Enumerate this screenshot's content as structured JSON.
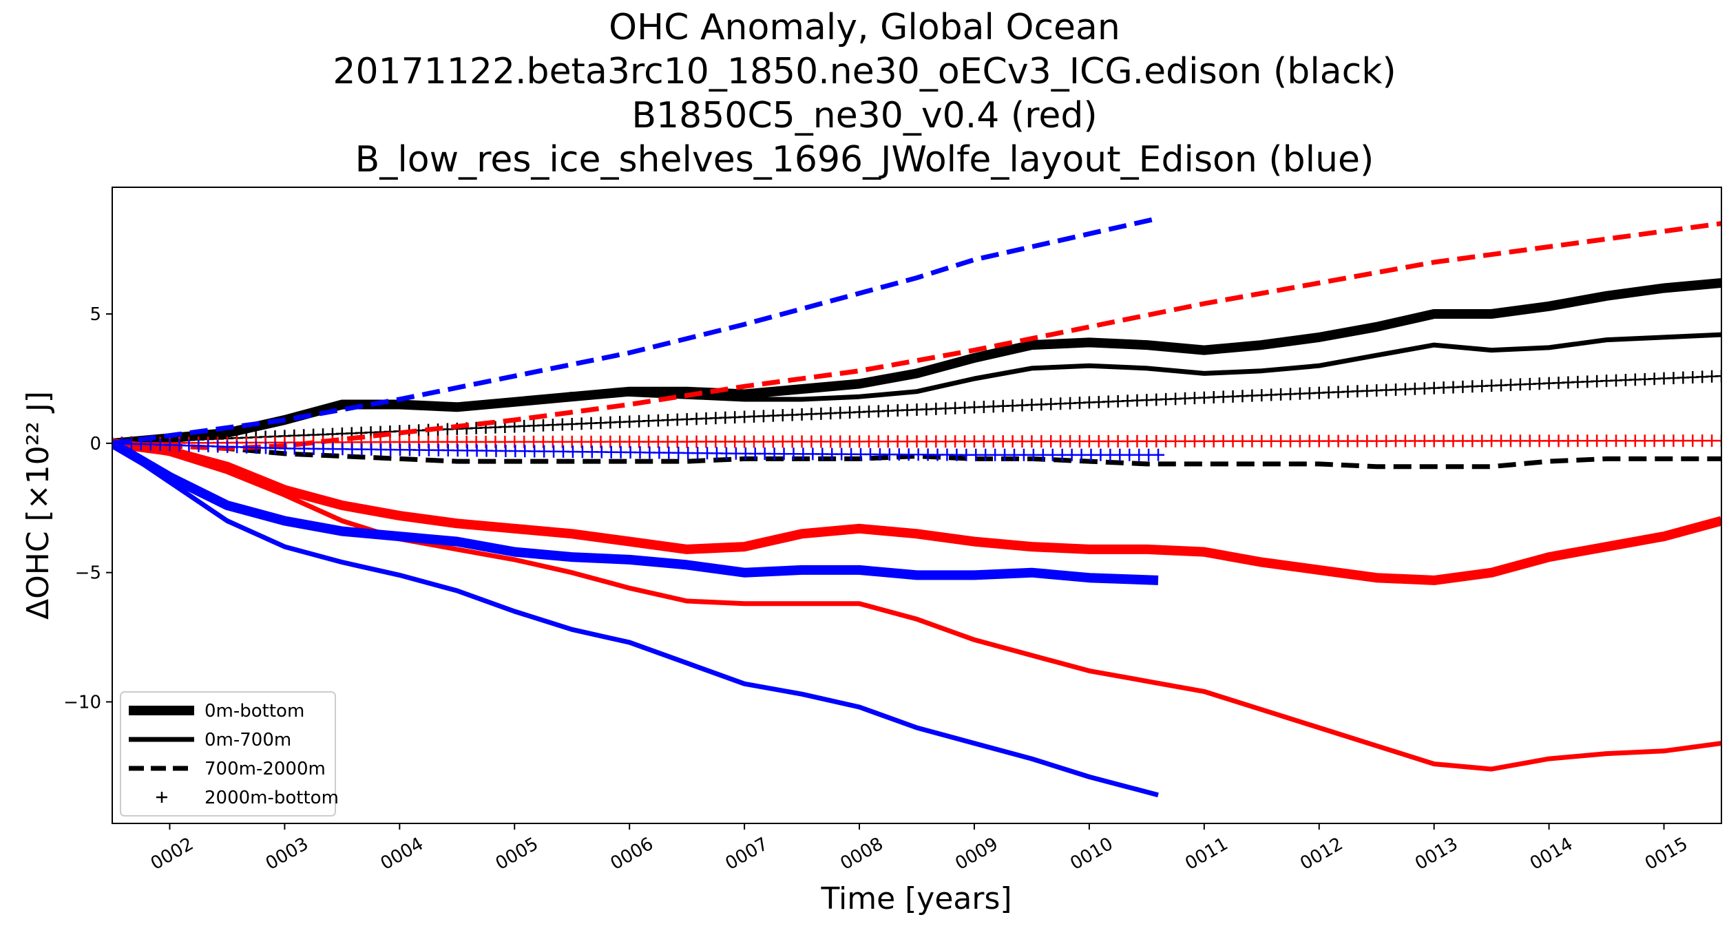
{
  "chart_data": {
    "type": "line",
    "title_lines": [
      "OHC Anomaly, Global Ocean",
      "20171122.beta3rc10_1850.ne30_oECv3_ICG.edison (black)",
      "B1850C5_ne30_v0.4 (red)",
      "B_low_res_ice_shelves_1696_JWolfe_layout_Edison (blue)"
    ],
    "xlabel": "Time [years]",
    "ylabel": "ΔOHC [×10²² J]",
    "xlim": [
      1.5,
      15.5
    ],
    "ylim": [
      -14.7,
      9.9
    ],
    "x_ticks": [
      2,
      3,
      4,
      5,
      6,
      7,
      8,
      9,
      10,
      11,
      12,
      13,
      14,
      15
    ],
    "x_tick_labels": [
      "0002",
      "0003",
      "0004",
      "0005",
      "0006",
      "0007",
      "0008",
      "0009",
      "0010",
      "0011",
      "0012",
      "0013",
      "0014",
      "0015"
    ],
    "y_ticks": [
      -10,
      -5,
      0,
      5
    ],
    "y_tick_labels": [
      "−10",
      "−5",
      "0",
      "5"
    ],
    "legend": {
      "position": "lower-left",
      "entries": [
        {
          "label": "0m-bottom",
          "style": "thick"
        },
        {
          "label": "0m-700m",
          "style": "solid"
        },
        {
          "label": "700m-2000m",
          "style": "dashed"
        },
        {
          "label": "2000m-bottom",
          "style": "plus"
        }
      ]
    },
    "colors": {
      "black": "#000000",
      "red": "#ff0000",
      "blue": "#0000ff"
    },
    "series": [
      {
        "color": "black",
        "style": "thick",
        "x": [
          1.5,
          2.5,
          3.0,
          3.5,
          4.0,
          4.5,
          5.0,
          5.5,
          6.0,
          6.5,
          7.0,
          7.5,
          8.0,
          8.5,
          9.0,
          9.5,
          10.0,
          10.5,
          11.0,
          11.5,
          12.0,
          12.5,
          13.0,
          13.5,
          14.0,
          14.5,
          15.0,
          15.5
        ],
        "y": [
          0,
          0.4,
          0.9,
          1.5,
          1.5,
          1.4,
          1.6,
          1.8,
          2.0,
          2.0,
          1.9,
          2.1,
          2.3,
          2.7,
          3.3,
          3.8,
          3.9,
          3.8,
          3.6,
          3.8,
          4.1,
          4.5,
          5.0,
          5.0,
          5.3,
          5.7,
          6.0,
          6.2
        ]
      },
      {
        "color": "black",
        "style": "solid",
        "x": [
          1.5,
          2.5,
          3.0,
          3.5,
          4.0,
          4.5,
          5.0,
          5.5,
          6.0,
          6.5,
          7.0,
          7.5,
          8.0,
          8.5,
          9.0,
          9.5,
          10.0,
          10.5,
          11.0,
          11.5,
          12.0,
          12.5,
          13.0,
          13.5,
          14.0,
          14.5,
          15.0,
          15.5
        ],
        "y": [
          0,
          0.4,
          0.9,
          1.4,
          1.5,
          1.4,
          1.6,
          1.9,
          1.9,
          1.8,
          1.7,
          1.7,
          1.8,
          2.0,
          2.5,
          2.9,
          3.0,
          2.9,
          2.7,
          2.8,
          3.0,
          3.4,
          3.8,
          3.6,
          3.7,
          4.0,
          4.1,
          4.2
        ]
      },
      {
        "color": "black",
        "style": "dashed",
        "x": [
          1.5,
          2.5,
          3.0,
          3.5,
          4.0,
          4.5,
          5.0,
          5.5,
          6.0,
          6.5,
          7.0,
          7.5,
          8.0,
          8.5,
          9.0,
          9.5,
          10.0,
          10.5,
          11.0,
          11.5,
          12.0,
          12.5,
          13.0,
          13.5,
          14.0,
          14.5,
          15.0,
          15.5
        ],
        "y": [
          0,
          -0.2,
          -0.4,
          -0.5,
          -0.6,
          -0.7,
          -0.7,
          -0.7,
          -0.7,
          -0.7,
          -0.6,
          -0.6,
          -0.6,
          -0.5,
          -0.6,
          -0.6,
          -0.7,
          -0.8,
          -0.8,
          -0.8,
          -0.8,
          -0.9,
          -0.9,
          -0.9,
          -0.7,
          -0.6,
          -0.6,
          -0.6
        ]
      },
      {
        "color": "black",
        "style": "plus",
        "x": [
          1.5,
          15.5
        ],
        "y": [
          0,
          2.6
        ]
      },
      {
        "color": "red",
        "style": "thick",
        "x": [
          1.5,
          2.0,
          2.5,
          3.0,
          3.5,
          4.0,
          4.5,
          5.0,
          5.5,
          6.0,
          6.5,
          7.0,
          7.5,
          8.0,
          8.5,
          9.0,
          9.5,
          10.0,
          10.5,
          11.0,
          11.5,
          12.0,
          12.5,
          13.0,
          13.5,
          14.0,
          14.5,
          15.0,
          15.5
        ],
        "y": [
          0,
          -0.3,
          -0.9,
          -1.8,
          -2.4,
          -2.8,
          -3.1,
          -3.3,
          -3.5,
          -3.8,
          -4.1,
          -4.0,
          -3.5,
          -3.3,
          -3.5,
          -3.8,
          -4.0,
          -4.1,
          -4.1,
          -4.2,
          -4.6,
          -4.9,
          -5.2,
          -5.3,
          -5.0,
          -4.4,
          -4.0,
          -3.6,
          -3.0
        ]
      },
      {
        "color": "red",
        "style": "solid",
        "x": [
          1.5,
          2.0,
          2.5,
          3.0,
          3.5,
          4.0,
          4.5,
          5.0,
          5.5,
          6.0,
          6.5,
          7.0,
          7.5,
          8.0,
          8.5,
          9.0,
          9.5,
          10.0,
          10.5,
          11.0,
          11.5,
          12.0,
          12.5,
          13.0,
          13.5,
          14.0,
          14.5,
          15.0,
          15.5
        ],
        "y": [
          0,
          -0.4,
          -1.1,
          -2.0,
          -3.0,
          -3.7,
          -4.1,
          -4.5,
          -5.0,
          -5.6,
          -6.1,
          -6.2,
          -6.2,
          -6.2,
          -6.8,
          -7.6,
          -8.2,
          -8.8,
          -9.2,
          -9.6,
          -10.3,
          -11.0,
          -11.7,
          -12.4,
          -12.6,
          -12.2,
          -12.0,
          -11.9,
          -11.6
        ]
      },
      {
        "color": "red",
        "style": "dashed",
        "x": [
          1.5,
          2.5,
          3.0,
          4.0,
          5.0,
          6.0,
          7.0,
          8.0,
          9.0,
          10.0,
          11.0,
          12.0,
          13.0,
          14.0,
          15.0,
          15.5
        ],
        "y": [
          0,
          -0.2,
          -0.1,
          0.4,
          0.9,
          1.5,
          2.2,
          2.8,
          3.6,
          4.5,
          5.4,
          6.2,
          7.0,
          7.6,
          8.2,
          8.5
        ]
      },
      {
        "color": "red",
        "style": "plus",
        "x": [
          1.5,
          4.0,
          15.5
        ],
        "y": [
          0,
          0.05,
          0.1
        ]
      },
      {
        "color": "blue",
        "style": "thick",
        "x": [
          1.5,
          2.0,
          2.5,
          3.0,
          3.5,
          4.0,
          4.5,
          5.0,
          5.5,
          6.0,
          6.5,
          7.0,
          7.5,
          8.0,
          8.5,
          9.0,
          9.5,
          10.0,
          10.6
        ],
        "y": [
          0,
          -1.3,
          -2.4,
          -3.0,
          -3.4,
          -3.6,
          -3.8,
          -4.2,
          -4.4,
          -4.5,
          -4.7,
          -5.0,
          -4.9,
          -4.9,
          -5.1,
          -5.1,
          -5.0,
          -5.2,
          -5.3
        ]
      },
      {
        "color": "blue",
        "style": "solid",
        "x": [
          1.5,
          2.0,
          2.5,
          3.0,
          3.5,
          4.0,
          4.5,
          5.0,
          5.5,
          6.0,
          6.5,
          7.0,
          7.5,
          8.0,
          8.5,
          9.0,
          9.5,
          10.0,
          10.6
        ],
        "y": [
          0,
          -1.5,
          -3.0,
          -4.0,
          -4.6,
          -5.1,
          -5.7,
          -6.5,
          -7.2,
          -7.7,
          -8.5,
          -9.3,
          -9.7,
          -10.2,
          -11.0,
          -11.6,
          -12.2,
          -12.9,
          -13.6
        ]
      },
      {
        "color": "blue",
        "style": "dashed",
        "x": [
          1.5,
          2.0,
          3.0,
          4.0,
          5.0,
          6.0,
          7.0,
          8.0,
          8.5,
          9.0,
          10.0,
          10.6
        ],
        "y": [
          0,
          0.3,
          0.9,
          1.7,
          2.6,
          3.5,
          4.6,
          5.8,
          6.4,
          7.1,
          8.1,
          8.7
        ]
      },
      {
        "color": "blue",
        "style": "plus",
        "x": [
          1.5,
          3.0,
          5.0,
          7.0,
          9.0,
          10.6
        ],
        "y": [
          0,
          -0.2,
          -0.3,
          -0.4,
          -0.45,
          -0.45
        ]
      }
    ]
  }
}
